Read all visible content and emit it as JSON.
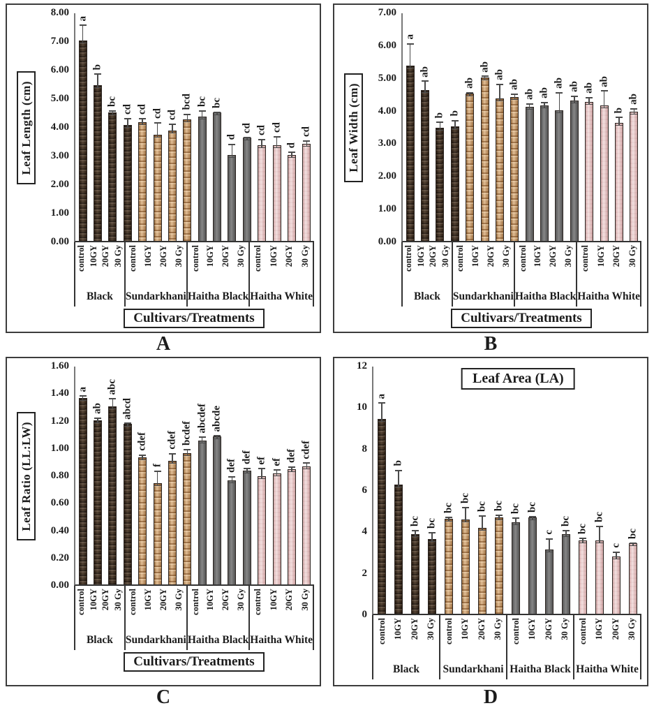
{
  "colors": {
    "black_cultivar": "#46311f",
    "sundarkhani": "#d6a46c",
    "haitha_black": "#6f6f6f",
    "haitha_white": "#ecc9c9",
    "bar_border": "#2b2420",
    "axis": "#787878",
    "ink": "#1c1c1c"
  },
  "chart_data": [
    {
      "type": "bar",
      "panel_label": "A",
      "title": "",
      "ylabel": "Leaf Length (cm)",
      "xlabel": "Cultivars/Treatments",
      "ylim": [
        0,
        8
      ],
      "ytick_step": 1.0,
      "ytick_decimals": 2,
      "grid": false,
      "legend": "none",
      "error_bars": true,
      "treatments": [
        "control",
        "10GY",
        "20GY",
        "30 Gy"
      ],
      "groups": [
        {
          "name": "Black",
          "values": [
            7.0,
            5.45,
            4.5,
            4.05
          ],
          "errors": [
            0.55,
            0.4,
            0.05,
            0.25
          ],
          "letters": [
            "a",
            "b",
            "bc",
            "cd"
          ]
        },
        {
          "name": "Sundarkhani",
          "values": [
            4.15,
            3.7,
            3.85,
            4.25
          ],
          "errors": [
            0.15,
            0.45,
            0.25,
            0.2
          ],
          "letters": [
            "cd",
            "cd",
            "cd",
            "bcd"
          ]
        },
        {
          "name": "Haitha Black",
          "values": [
            4.35,
            4.5,
            3.0,
            3.6
          ],
          "errors": [
            0.2,
            0.02,
            0.4,
            0.02
          ],
          "letters": [
            "bc",
            "bc",
            "d",
            "cd"
          ]
        },
        {
          "name": "Haitha White",
          "values": [
            3.35,
            3.35,
            3.0,
            3.4
          ],
          "errors": [
            0.2,
            0.3,
            0.12,
            0.12
          ],
          "letters": [
            "cd",
            "cd",
            "d",
            "cd"
          ]
        }
      ]
    },
    {
      "type": "bar",
      "panel_label": "B",
      "title": "",
      "ylabel": "Leaf Width (cm)",
      "xlabel": "Cultivars/Treatments",
      "ylim": [
        0,
        7
      ],
      "ytick_step": 1.0,
      "ytick_decimals": 2,
      "grid": false,
      "legend": "none",
      "error_bars": true,
      "treatments": [
        "control",
        "10GY",
        "20GY",
        "30 Gy"
      ],
      "groups": [
        {
          "name": "Black",
          "values": [
            5.35,
            4.6,
            3.45,
            3.5
          ],
          "errors": [
            0.7,
            0.3,
            0.2,
            0.2
          ],
          "letters": [
            "a",
            "ab",
            "b",
            "b"
          ]
        },
        {
          "name": "Sundarkhani",
          "values": [
            4.5,
            5.0,
            4.35,
            4.4
          ],
          "errors": [
            0.05,
            0.05,
            0.45,
            0.1
          ],
          "letters": [
            "ab",
            "ab",
            "ab",
            "ab"
          ]
        },
        {
          "name": "Haitha Black",
          "values": [
            4.1,
            4.15,
            4.0,
            4.3
          ],
          "errors": [
            0.1,
            0.1,
            0.55,
            0.15
          ],
          "letters": [
            "ab",
            "ab",
            "ab",
            "ab"
          ]
        },
        {
          "name": "Haitha White",
          "values": [
            4.25,
            4.15,
            3.6,
            3.95
          ],
          "errors": [
            0.15,
            0.45,
            0.2,
            0.1
          ],
          "letters": [
            "ab",
            "ab",
            "b",
            "ab"
          ]
        }
      ]
    },
    {
      "type": "bar",
      "panel_label": "C",
      "title": "",
      "ylabel": "Leaf Ratio (LL:LW)",
      "xlabel": "Cultivars/Treatments",
      "ylim": [
        0,
        1.6
      ],
      "ytick_step": 0.2,
      "ytick_decimals": 2,
      "grid": false,
      "legend": "none",
      "error_bars": true,
      "treatments": [
        "control",
        "10GY",
        "20GY",
        "30 Gy"
      ],
      "groups": [
        {
          "name": "Black",
          "values": [
            1.36,
            1.2,
            1.3,
            1.17
          ],
          "errors": [
            0.02,
            0.02,
            0.06,
            0.01
          ],
          "letters": [
            "a",
            "ab",
            "abc",
            "abcd"
          ]
        },
        {
          "name": "Sundarkhani",
          "values": [
            0.93,
            0.74,
            0.9,
            0.96
          ],
          "errors": [
            0.02,
            0.09,
            0.06,
            0.03
          ],
          "letters": [
            "cdef",
            "f",
            "cdef",
            "bcdef"
          ]
        },
        {
          "name": "Haitha Black",
          "values": [
            1.05,
            1.08,
            0.76,
            0.83
          ],
          "errors": [
            0.03,
            0.01,
            0.03,
            0.02
          ],
          "letters": [
            "abcdef",
            "abcde",
            "def",
            "def"
          ]
        },
        {
          "name": "Haitha White",
          "values": [
            0.79,
            0.81,
            0.84,
            0.86
          ],
          "errors": [
            0.06,
            0.03,
            0.02,
            0.03
          ],
          "letters": [
            "ef",
            "ef",
            "def",
            "cdef"
          ]
        }
      ]
    },
    {
      "type": "bar",
      "panel_label": "D",
      "title": "Leaf Area (LA)",
      "ylabel": "",
      "xlabel": "",
      "ylim": [
        0,
        12
      ],
      "ytick_step": 2.0,
      "ytick_decimals": 0,
      "grid": false,
      "legend": "none",
      "error_bars": true,
      "treatments": [
        "control",
        "10GY",
        "20GY",
        "30 Gy"
      ],
      "groups": [
        {
          "name": "Black",
          "values": [
            9.4,
            6.25,
            3.85,
            3.6
          ],
          "errors": [
            0.8,
            0.7,
            0.2,
            0.35
          ],
          "letters": [
            "a",
            "b",
            "bc",
            "bc"
          ]
        },
        {
          "name": "Sundarkhani",
          "values": [
            4.6,
            4.55,
            4.15,
            4.65
          ],
          "errors": [
            0.08,
            0.6,
            0.6,
            0.15
          ],
          "letters": [
            "bc",
            "bc",
            "bc",
            "bc"
          ]
        },
        {
          "name": "Haitha Black",
          "values": [
            4.4,
            4.65,
            3.1,
            3.85
          ],
          "errors": [
            0.25,
            0.08,
            0.55,
            0.2
          ],
          "letters": [
            "bc",
            "bc",
            "c",
            "bc"
          ]
        },
        {
          "name": "Haitha White",
          "values": [
            3.55,
            3.55,
            2.75,
            3.4
          ],
          "errors": [
            0.12,
            0.7,
            0.25,
            0.05
          ],
          "letters": [
            "bc",
            "bc",
            "c",
            "bc"
          ]
        }
      ]
    }
  ]
}
